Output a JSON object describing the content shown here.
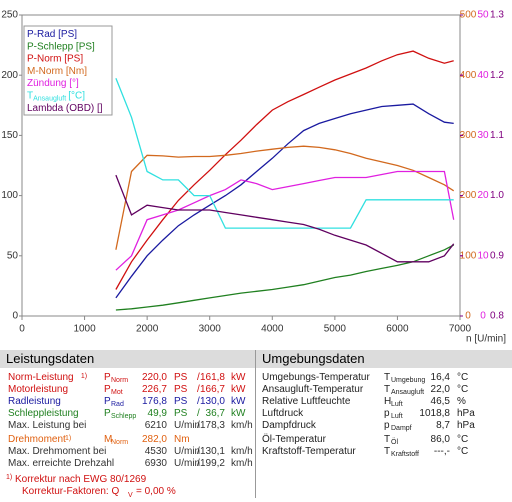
{
  "chart_data": {
    "type": "line",
    "x": [
      1500,
      1750,
      2000,
      2250,
      2500,
      2750,
      3000,
      3250,
      3500,
      3750,
      4000,
      4250,
      4500,
      4750,
      5000,
      5250,
      5500,
      5750,
      6000,
      6250,
      6500,
      6750,
      6900
    ],
    "xlim": [
      0,
      7000
    ],
    "xticks": [
      0,
      1000,
      2000,
      3000,
      4000,
      5000,
      6000,
      7000
    ],
    "xlabel": "n [U/min]",
    "ylim": [
      0,
      250
    ],
    "yticks": [
      0,
      50,
      100,
      150,
      200,
      250
    ],
    "y2lim": [
      0,
      500
    ],
    "y2ticks": [
      0,
      100,
      200,
      300,
      400,
      500
    ],
    "y2color": "#d2691e",
    "y3lim": [
      0,
      50
    ],
    "y3ticks": [
      0,
      10,
      20,
      30,
      40,
      50
    ],
    "y3color": "#e020e0",
    "y4lim": [
      0.8,
      1.3
    ],
    "y4ticks": [
      0.8,
      0.9,
      {
        "value": 1,
        "label": "1.0"
      },
      1.1,
      1.2,
      1.3
    ],
    "y4color": "#800080",
    "series": [
      {
        "name": "P-Rad [PS]",
        "color": "#1a1aa0",
        "axis": "y",
        "values": [
          15,
          33,
          50,
          63,
          75,
          84,
          92,
          100,
          109,
          120,
          131,
          143,
          154,
          160,
          164,
          168,
          171,
          174,
          175,
          176,
          168,
          161,
          160
        ]
      },
      {
        "name": "P-Schlepp [PS]",
        "color": "#208020",
        "axis": "y",
        "values": [
          5,
          6,
          7.5,
          9,
          11,
          13,
          15,
          17,
          19,
          20.5,
          22,
          24,
          26,
          29,
          32,
          34,
          37,
          39.5,
          42,
          45,
          50,
          55,
          59
        ]
      },
      {
        "name": "P-Norm [PS]",
        "color": "#d01010",
        "axis": "y",
        "values": [
          22,
          45,
          63,
          80,
          96,
          109,
          121,
          134,
          146,
          159,
          171,
          178,
          184,
          190,
          196,
          201,
          206,
          212,
          217,
          220,
          214,
          210,
          212
        ]
      },
      {
        "name": "M-Norm [Nm]",
        "color": "#d2691e",
        "axis": "y2",
        "values": [
          110,
          240,
          267,
          266,
          264,
          265,
          265,
          267,
          270,
          274,
          277,
          280,
          282,
          280,
          276,
          270,
          262,
          256,
          250,
          242,
          230,
          218,
          208
        ]
      },
      {
        "name": "Zündung [°]",
        "color": "#e020e0",
        "axis": "y3",
        "values": [
          7.6,
          10,
          16,
          16.8,
          17.6,
          18.8,
          20,
          21,
          22.6,
          22,
          21,
          21.5,
          22,
          22.5,
          23,
          23,
          23,
          23.5,
          24,
          24,
          24,
          24,
          16
        ]
      },
      {
        "name": "T",
        "name_sub": "Ansaugluft",
        "name_unit": "[°C]",
        "color": "#30e0e0",
        "axis": "y3",
        "values": [
          39.5,
          33,
          24,
          22.6,
          22.6,
          20,
          20,
          14.6,
          14.6,
          14.6,
          14.6,
          14.6,
          14.6,
          14.6,
          14.6,
          14.6,
          19.3,
          19.3,
          19.3,
          19.3,
          19.3,
          19.3,
          19.3
        ]
      },
      {
        "name": "Lambda (OBD) []",
        "color": "#600060",
        "axis": "y4",
        "values": [
          1.034,
          0.968,
          0.984,
          0.98,
          0.976,
          0.976,
          0.976,
          0.972,
          0.968,
          0.964,
          0.96,
          0.956,
          0.952,
          0.944,
          0.934,
          0.926,
          0.918,
          0.904,
          0.89,
          0.89,
          0.89,
          0.9,
          0.92
        ]
      }
    ]
  },
  "leistung": {
    "title": "Leistungsdaten",
    "rows": [
      {
        "label": "Norm-Leistung",
        "note": "1)",
        "sym": "P",
        "sub": "Norm",
        "v1": "220,0",
        "u1": "PS",
        "sep": "/",
        "v2": "161,8",
        "u2": "kW",
        "color": "#d01010"
      },
      {
        "label": "Motorleistung",
        "sym": "P",
        "sub": "Mot",
        "v1": "226,7",
        "u1": "PS",
        "sep": "/",
        "v2": "166,7",
        "u2": "kW",
        "color": "#d01010"
      },
      {
        "label": "Radleistung",
        "sym": "P",
        "sub": "Rad",
        "v1": "176,8",
        "u1": "PS",
        "sep": "/",
        "v2": "130,0",
        "u2": "kW",
        "color": "#1a1aa0"
      },
      {
        "label": "Schleppleistung",
        "sym": "P",
        "sub": "Schlepp",
        "v1": "49,9",
        "u1": "PS",
        "sep": "/",
        "v2": "36,7",
        "u2": "kW",
        "color": "#208020"
      },
      {
        "label": "Max. Leistung bei",
        "v1": "6210",
        "u1": "U/min",
        "sep": "/",
        "v2": "178,3",
        "u2": "km/h",
        "color": "#333"
      },
      {
        "label": "Drehmoment",
        "note": "1)",
        "sym": "M",
        "sub": "Norm",
        "v1": "282,0",
        "u1": "Nm",
        "color": "#e06010"
      },
      {
        "label": "Max. Drehmoment bei",
        "v1": "4530",
        "u1": "U/min",
        "sep": "/",
        "v2": "130,1",
        "u2": "km/h",
        "color": "#333"
      },
      {
        "label": "Max. erreichte Drehzahl",
        "v1": "6930",
        "u1": "U/min",
        "sep": "/",
        "v2": "199,2",
        "u2": "km/h",
        "color": "#333"
      }
    ],
    "footnotes": [
      {
        "marker": "1)",
        "text": "Korrektur nach EWG 80/1269"
      },
      {
        "text": "Korrektur-Faktoren: Q",
        "sub": "V",
        "value": "=  0,00 %"
      }
    ]
  },
  "umgebung": {
    "title": "Umgebungsdaten",
    "rows": [
      {
        "label": "Umgebungs-Temperatur",
        "sym": "T",
        "sub": "Umgebung",
        "v1": "16,4",
        "u1": "°C"
      },
      {
        "label": "Ansaugluft-Temperatur",
        "sym": "T",
        "sub": "Ansaugluft",
        "v1": "22,0",
        "u1": "°C"
      },
      {
        "label": "Relative Luftfeuchte",
        "sym": "H",
        "sub": "Luft",
        "v1": "46,5",
        "u1": "%"
      },
      {
        "label": "Luftdruck",
        "sym": "p",
        "sub": "Luft",
        "v1": "1018,8",
        "u1": "hPa"
      },
      {
        "label": "Dampfdruck",
        "sym": "p",
        "sub": "Dampf",
        "v1": "8,7",
        "u1": "hPa"
      },
      {
        "label": "Öl-Temperatur",
        "sym": "T",
        "sub": "Öl",
        "v1": "86,0",
        "u1": "°C"
      },
      {
        "label": "Kraftstoff-Temperatur",
        "sym": "T",
        "sub": "Kraftstoff",
        "v1": "---,-",
        "u1": "°C"
      }
    ]
  }
}
